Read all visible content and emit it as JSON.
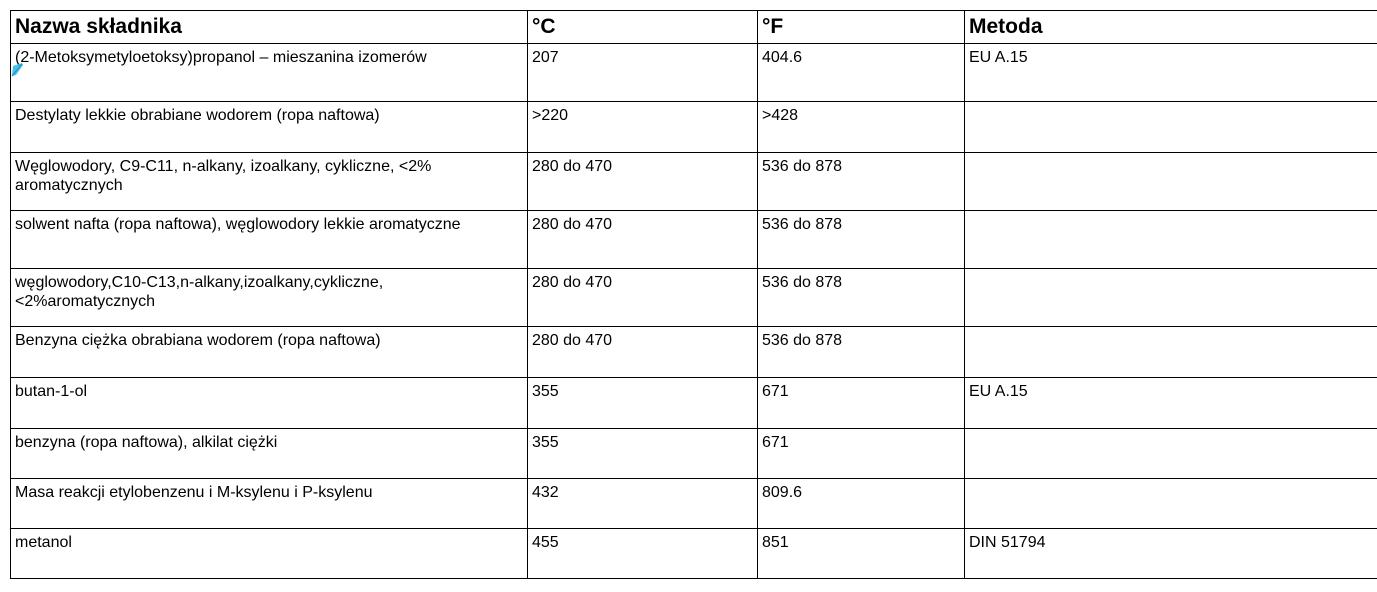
{
  "table": {
    "headers": [
      "Nazwa składnika",
      "°C",
      "°F",
      "Metoda"
    ],
    "rows": [
      {
        "name": "(2-Metoksymetyloetoksy)propanol – mieszanina izomerów",
        "c": "207",
        "f": "404.6",
        "method": "EU A.15"
      },
      {
        "name": "Destylaty lekkie obrabiane wodorem (ropa naftowa)",
        "c": ">220",
        "f": ">428",
        "method": ""
      },
      {
        "name": "Węglowodory, C9-C11, n-alkany, izoalkany, cykliczne, <2% aromatycznych",
        "c": "280 do 470",
        "f": "536 do 878",
        "method": ""
      },
      {
        "name": "solwent nafta (ropa naftowa), węglowodory lekkie aromatyczne",
        "c": "280 do 470",
        "f": "536 do 878",
        "method": ""
      },
      {
        "name": "węglowodory,C10-C13,n-alkany,izoalkany,cykliczne, <2%aromatycznych",
        "c": "280 do 470",
        "f": "536 do 878",
        "method": ""
      },
      {
        "name": "Benzyna ciężka obrabiana wodorem (ropa naftowa)",
        "c": "280 do 470",
        "f": "536 do 878",
        "method": ""
      },
      {
        "name": "butan-1-ol",
        "c": "355",
        "f": "671",
        "method": "EU A.15"
      },
      {
        "name": "benzyna (ropa naftowa), alkilat ciężki",
        "c": "355",
        "f": "671",
        "method": ""
      },
      {
        "name": "Masa reakcji etylobenzenu i M-ksylenu i P-ksylenu",
        "c": "432",
        "f": "809.6",
        "method": ""
      },
      {
        "name": "metanol",
        "c": "455",
        "f": "851",
        "method": "DIN 51794"
      }
    ]
  },
  "colors": {
    "border": "#000000",
    "text": "#000000",
    "selection_marker": "#29b6e8"
  }
}
